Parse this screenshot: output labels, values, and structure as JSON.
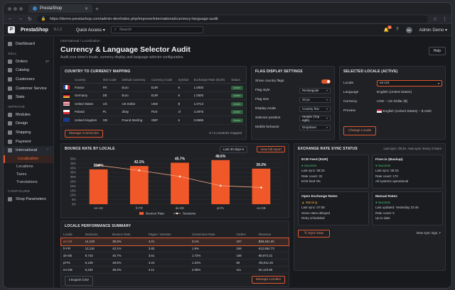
{
  "browser": {
    "tab_title": "PrestaShop",
    "url": "https://demo.prestashop.com/admin-dev/index.php/improve/international/currency-language-audit"
  },
  "topnav": {
    "brand": "PrestaShop",
    "version": "8.1.2",
    "quick_access": "Quick Access ▾",
    "search_placeholder": "Search",
    "notif_count": "2",
    "user_initials": "AD",
    "user_name": "Admin Demo ▾"
  },
  "sidebar": {
    "dashboard": "Dashboard",
    "sell_header": "SELL",
    "orders": "Orders",
    "orders_count": "27",
    "catalog": "Catalog",
    "customers": "Customers",
    "customer_service": "Customer Service",
    "stats": "Stats",
    "improve_header": "IMPROVE",
    "modules": "Modules",
    "design": "Design",
    "shipping": "Shipping",
    "payment": "Payment",
    "international": "International",
    "sub": [
      "Localization",
      "Locations",
      "Taxes",
      "Translations"
    ],
    "configure_header": "CONFIGURE",
    "shop_parameters": "Shop Parameters"
  },
  "page": {
    "breadcrumb": "International  /  Localization",
    "title": "Currency & Language Selector Audit",
    "subtitle": "Audit your store's locale, currency display and language selector configuration.",
    "help": "Help"
  },
  "mapping": {
    "title": "COUNTRY TO CURRENCY MAPPING",
    "headers": [
      "",
      "Country",
      "ISO Code",
      "Default Currency",
      "Currency Code",
      "Symbol",
      "Exchange Rate (EUR)",
      "Status"
    ],
    "rows": [
      {
        "country": "France",
        "iso": "FR",
        "currency": "Euro",
        "code": "EUR",
        "symbol": "€",
        "rate": "1.0000",
        "status": "Active"
      },
      {
        "country": "Germany",
        "iso": "DE",
        "currency": "Euro",
        "code": "EUR",
        "symbol": "€",
        "rate": "1.0000",
        "status": "Active"
      },
      {
        "country": "United States",
        "iso": "US",
        "currency": "US Dollar",
        "code": "USD",
        "symbol": "$",
        "rate": "1.0713",
        "status": "Active"
      },
      {
        "country": "Poland",
        "iso": "PL",
        "currency": "Zloty",
        "code": "PLN",
        "symbol": "zł",
        "rate": "4.2975",
        "status": "Active"
      },
      {
        "country": "United Kingdom",
        "iso": "GB",
        "currency": "Pound Sterling",
        "code": "GBP",
        "symbol": "£",
        "rate": "0.8586",
        "status": "Active"
      }
    ],
    "manage_btn": "Manage Currencies",
    "count_text": "5 / 5 countries mapped"
  },
  "flag": {
    "title": "FLAG DISPLAY SETTINGS",
    "show_flags": "Show country flags",
    "rows": [
      {
        "label": "Flag style",
        "value": "Rectangular"
      },
      {
        "label": "Flag size",
        "value": "20 px"
      },
      {
        "label": "Display mode",
        "value": "Country first"
      },
      {
        "label": "Selector position",
        "value": "Header (Top right)"
      },
      {
        "label": "Mobile behavior",
        "value": "Dropdown"
      }
    ]
  },
  "locale": {
    "title": "SELECTED LOCALE (ACTIVE)",
    "locale_label": "Locale",
    "locale_value": "en-US",
    "language_label": "Language",
    "language_value": "English (United States)",
    "currency_label": "Currency",
    "currency_value": "USD – US Dollar ($)",
    "preview_label": "Preview",
    "preview_value": "English (United States) – $ USD",
    "change_btn": "Change Locale"
  },
  "bounce": {
    "title": "BOUNCE RATE BY LOCALE",
    "period": "Last 30 days ▾",
    "report_btn": "View full report",
    "legend_bar": "Bounce Rate",
    "legend_line": "Sessions"
  },
  "chart_data": {
    "type": "bar",
    "categories": [
      "en-US",
      "fr-FR",
      "de-DE",
      "pl-PL",
      "en-GB"
    ],
    "series": [
      {
        "name": "Bounce Rate",
        "values": [
          38.4,
          42.1,
          45.7,
          48.6,
          39.2
        ]
      },
      {
        "name": "Sessions",
        "values": [
          14120,
          12116,
          9743,
          6129,
          5432
        ]
      }
    ],
    "ylim": [
      0,
      50
    ],
    "yticks": [
      "0%",
      "5%",
      "10%",
      "15%",
      "20%",
      "25%",
      "30%",
      "35%",
      "40%",
      "45%",
      "50%"
    ],
    "data_labels": [
      "38.4%",
      "42.1%",
      "45.7%",
      "48.6%",
      "39.2%"
    ],
    "colors": {
      "bar": "#f0582a",
      "line": "#f0a27f"
    }
  },
  "perf": {
    "title": "LOCALE PERFORMANCE SUMMARY",
    "headers": [
      "Locale",
      "Sessions",
      "Bounce Rate",
      "Pages / Session",
      "Conversion Rate",
      "Orders",
      "Revenue"
    ],
    "rows": [
      [
        "en-US",
        "14,120",
        "38.4%",
        "4.21",
        "3.1%",
        "437",
        "$38,451.20"
      ],
      [
        "fr-FR",
        "12,116",
        "42.1%",
        "3.82",
        "1.9%",
        "246",
        "€12,854.73"
      ],
      [
        "de-DE",
        "9,743",
        "45.7%",
        "3.61",
        "1.72%",
        "168",
        "€8,974.21"
      ],
      [
        "pl-PL",
        "6,129",
        "48.6%",
        "3.24",
        "1.31%",
        "80",
        "zł3,812.45"
      ],
      [
        "en-GB",
        "5,432",
        "39.2%",
        "4.11",
        "2.05%",
        "111",
        "£5,123.90"
      ]
    ],
    "export_btn": "Export CSV",
    "manage_btn": "Manage Locales"
  },
  "sync": {
    "title": "EXCHANGE RATE SYNC STATUS",
    "last_sync": "Last sync: 08:15",
    "auto_sync": "Auto sync: Every 4 hours",
    "ecb": {
      "title": "ECB Feed (EUR)",
      "status": "Success",
      "l1": "Last sync: 08:15",
      "l2": "Rate count: 32",
      "l3": "ECB feed OK"
    },
    "fixer": {
      "title": "Fixer.io (Backup)",
      "status": "Success",
      "l1": "Last sync: 08:15",
      "l2": "Rate count: 170",
      "l3": "All systems operational"
    },
    "oer": {
      "title": "Open Exchange Rates",
      "status": "Warning",
      "l1": "Last sync: 07:58",
      "l2": "Some rates delayed",
      "l3": "Retry scheduled"
    },
    "manual": {
      "title": "Manual Rates",
      "status": "Success",
      "l1": "Last updated: Yesterday 23:45",
      "l2": "Rate count: 5",
      "l3": "Up to date"
    },
    "sync_btn": "Sync Now",
    "logs": "View sync logs"
  }
}
